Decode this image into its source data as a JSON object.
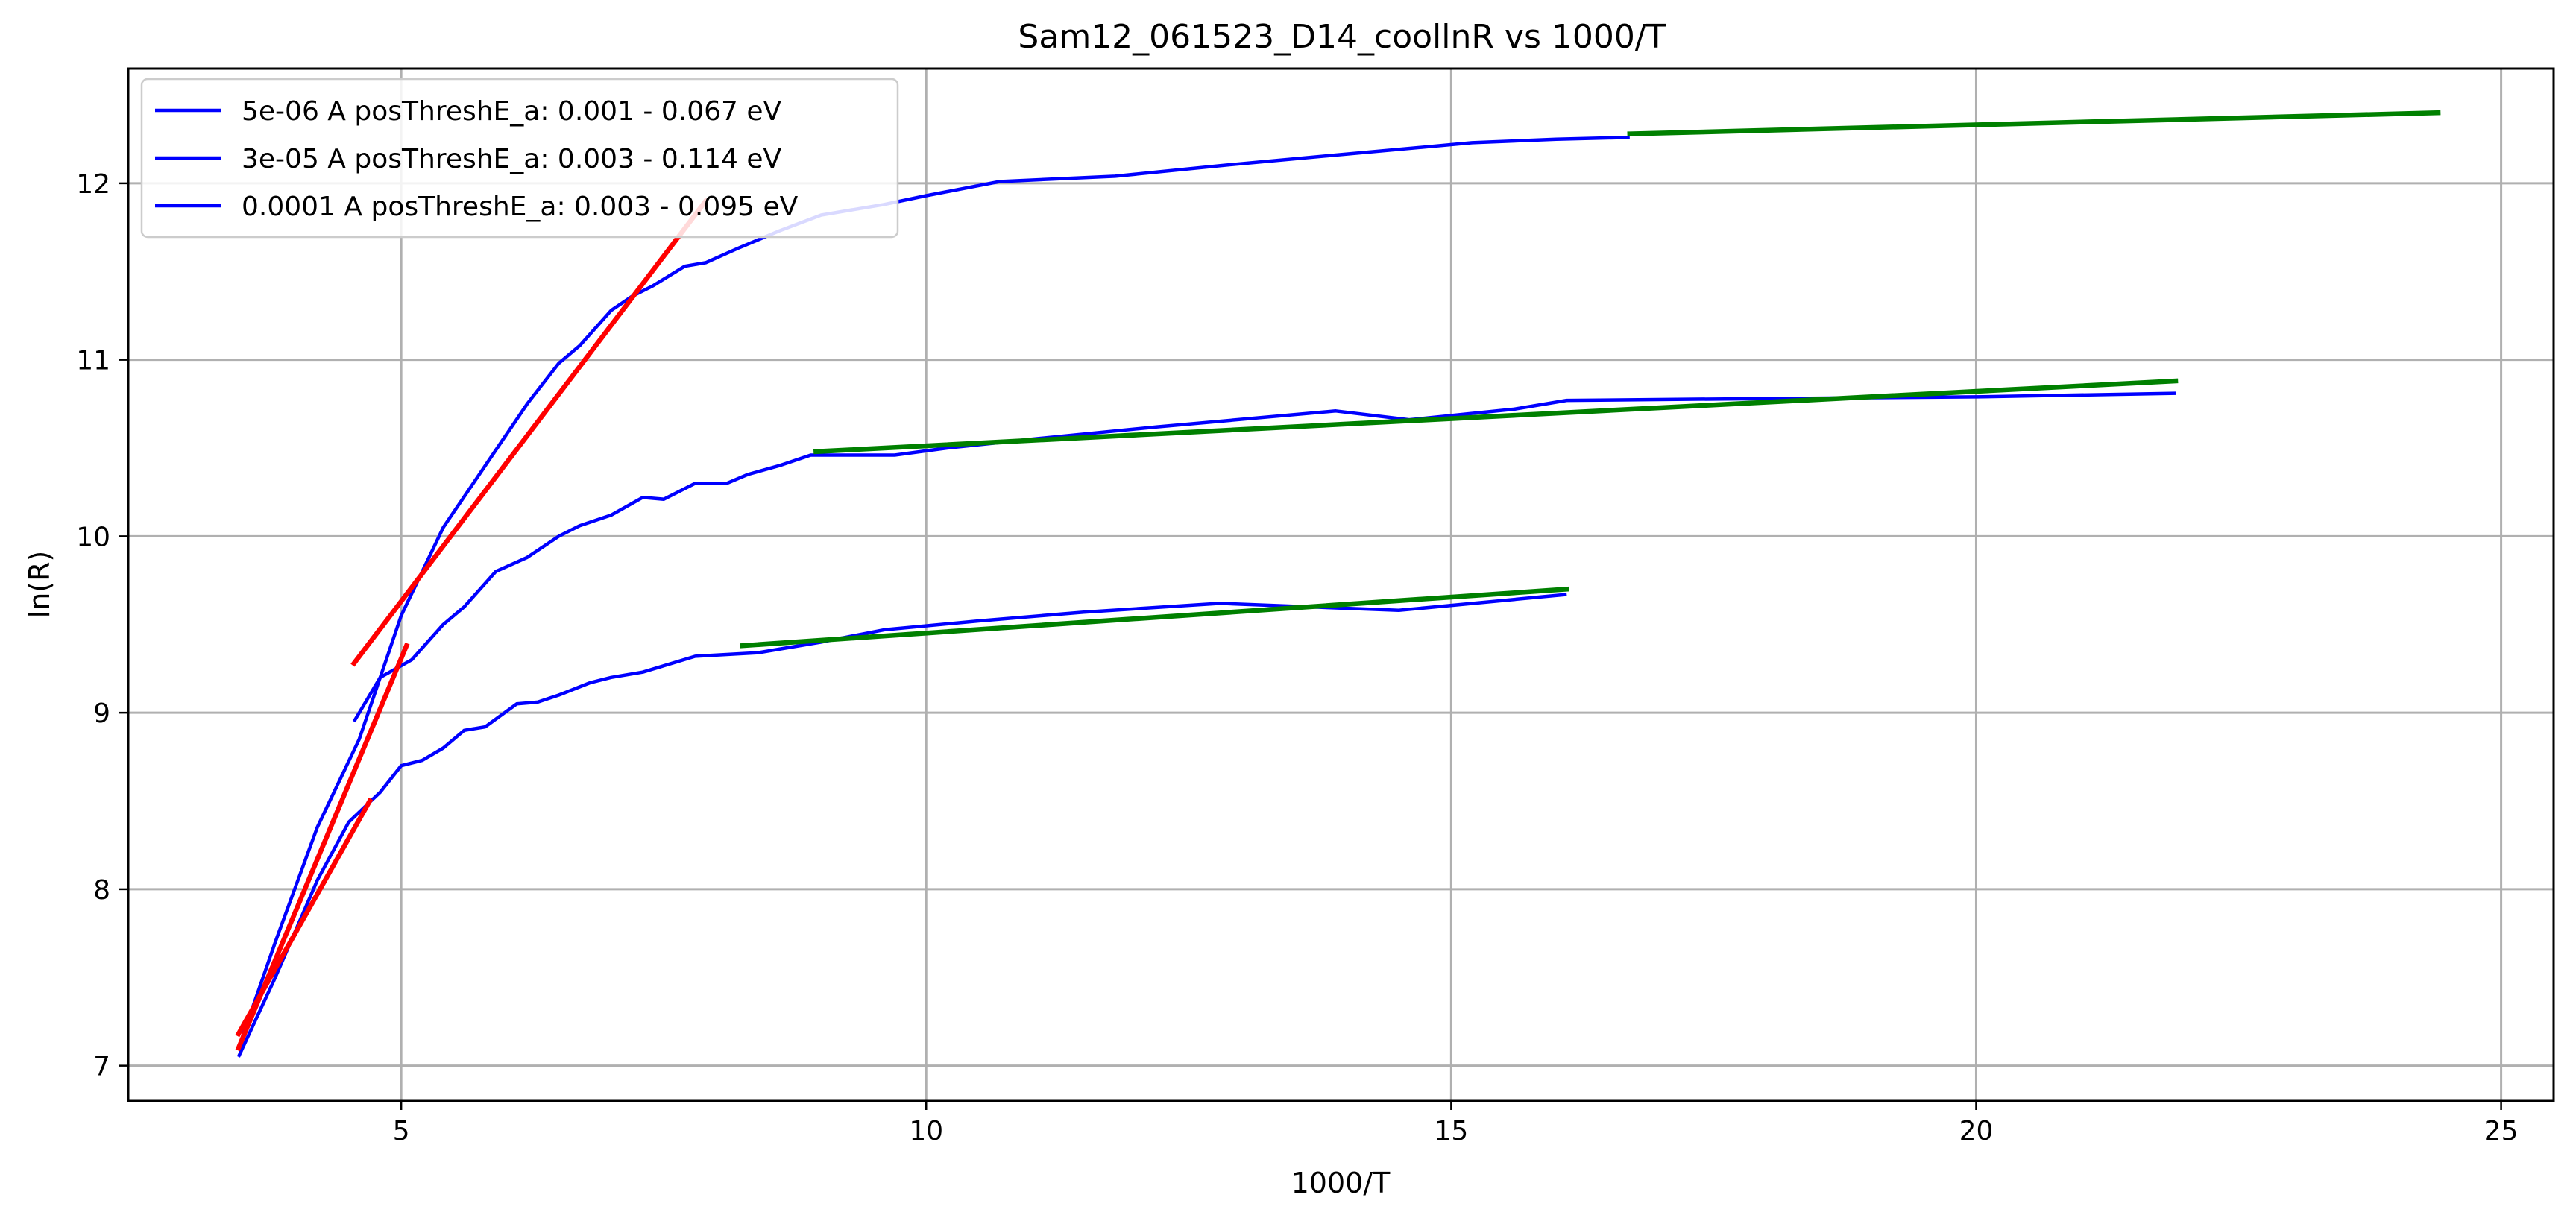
{
  "chart_data": {
    "type": "line",
    "title": "Sam12_061523_D14_coollnR vs 1000/T",
    "xlabel": "1000/T",
    "ylabel": "ln(R)",
    "xlim": [
      2.4,
      25.5
    ],
    "ylim": [
      6.8,
      12.65
    ],
    "xticks": [
      5,
      10,
      15,
      20,
      25
    ],
    "yticks": [
      7,
      8,
      9,
      10,
      11,
      12
    ],
    "grid": true,
    "legend_position": "upper-left",
    "series": [
      {
        "name": "5e-06 A posThreshE_a: 0.001 - 0.067 eV",
        "color": "#0000ff",
        "x": [
          3.45,
          3.8,
          4.2,
          4.6,
          5.0,
          5.4,
          5.8,
          6.2,
          6.5,
          6.7,
          7.0,
          7.2,
          7.4,
          7.7,
          7.9,
          8.2,
          8.6,
          9.0,
          9.6,
          10.0,
          10.7,
          11.8,
          12.8,
          13.9,
          15.2,
          16.0,
          16.7
        ],
        "y": [
          7.1,
          7.7,
          8.35,
          8.85,
          9.55,
          10.05,
          10.4,
          10.75,
          10.98,
          11.08,
          11.28,
          11.36,
          11.42,
          11.53,
          11.55,
          11.63,
          11.73,
          11.82,
          11.88,
          11.93,
          12.01,
          12.04,
          12.1,
          12.16,
          12.23,
          12.25,
          12.26
        ]
      },
      {
        "name": "3e-05 A posThreshE_a: 0.003 - 0.114 eV",
        "color": "#0000ff",
        "x": [
          4.55,
          4.8,
          5.1,
          5.4,
          5.6,
          5.9,
          6.2,
          6.5,
          6.7,
          7.0,
          7.3,
          7.5,
          7.8,
          8.1,
          8.3,
          8.6,
          8.9,
          9.2,
          9.7,
          10.2,
          11.0,
          12.2,
          13.9,
          14.6,
          15.6,
          16.1,
          18.0,
          20.0,
          21.9
        ],
        "y": [
          8.95,
          9.2,
          9.3,
          9.5,
          9.6,
          9.8,
          9.88,
          10.0,
          10.06,
          10.12,
          10.22,
          10.21,
          10.3,
          10.3,
          10.35,
          10.4,
          10.46,
          10.46,
          10.46,
          10.5,
          10.55,
          10.62,
          10.71,
          10.66,
          10.72,
          10.77,
          10.78,
          10.79,
          10.81
        ]
      },
      {
        "name": "0.0001 A posThreshE_a: 0.003 - 0.095 eV",
        "color": "#0000ff",
        "x": [
          3.45,
          3.8,
          4.2,
          4.5,
          4.8,
          5.0,
          5.2,
          5.4,
          5.6,
          5.8,
          6.1,
          6.3,
          6.5,
          6.8,
          7.0,
          7.3,
          7.8,
          8.4,
          9.0,
          9.6,
          10.5,
          11.5,
          12.8,
          14.5,
          16.1
        ],
        "y": [
          7.05,
          7.5,
          8.05,
          8.38,
          8.55,
          8.7,
          8.73,
          8.8,
          8.9,
          8.92,
          9.05,
          9.06,
          9.1,
          9.17,
          9.2,
          9.23,
          9.32,
          9.34,
          9.4,
          9.47,
          9.52,
          9.57,
          9.62,
          9.58,
          9.67
        ]
      }
    ],
    "fit_lines": [
      {
        "color": "#ff0000",
        "x": [
          4.55,
          7.9
        ],
        "y": [
          9.28,
          11.9
        ]
      },
      {
        "color": "#ff0000",
        "x": [
          3.45,
          5.05
        ],
        "y": [
          7.1,
          9.38
        ]
      },
      {
        "color": "#ff0000",
        "x": [
          3.45,
          4.7
        ],
        "y": [
          7.18,
          8.5
        ]
      },
      {
        "color": "#008000",
        "x": [
          16.7,
          24.4
        ],
        "y": [
          12.28,
          12.4
        ]
      },
      {
        "color": "#008000",
        "x": [
          8.95,
          21.9
        ],
        "y": [
          10.48,
          10.88
        ]
      },
      {
        "color": "#008000",
        "x": [
          8.25,
          16.1
        ],
        "y": [
          9.38,
          9.7
        ]
      }
    ]
  }
}
